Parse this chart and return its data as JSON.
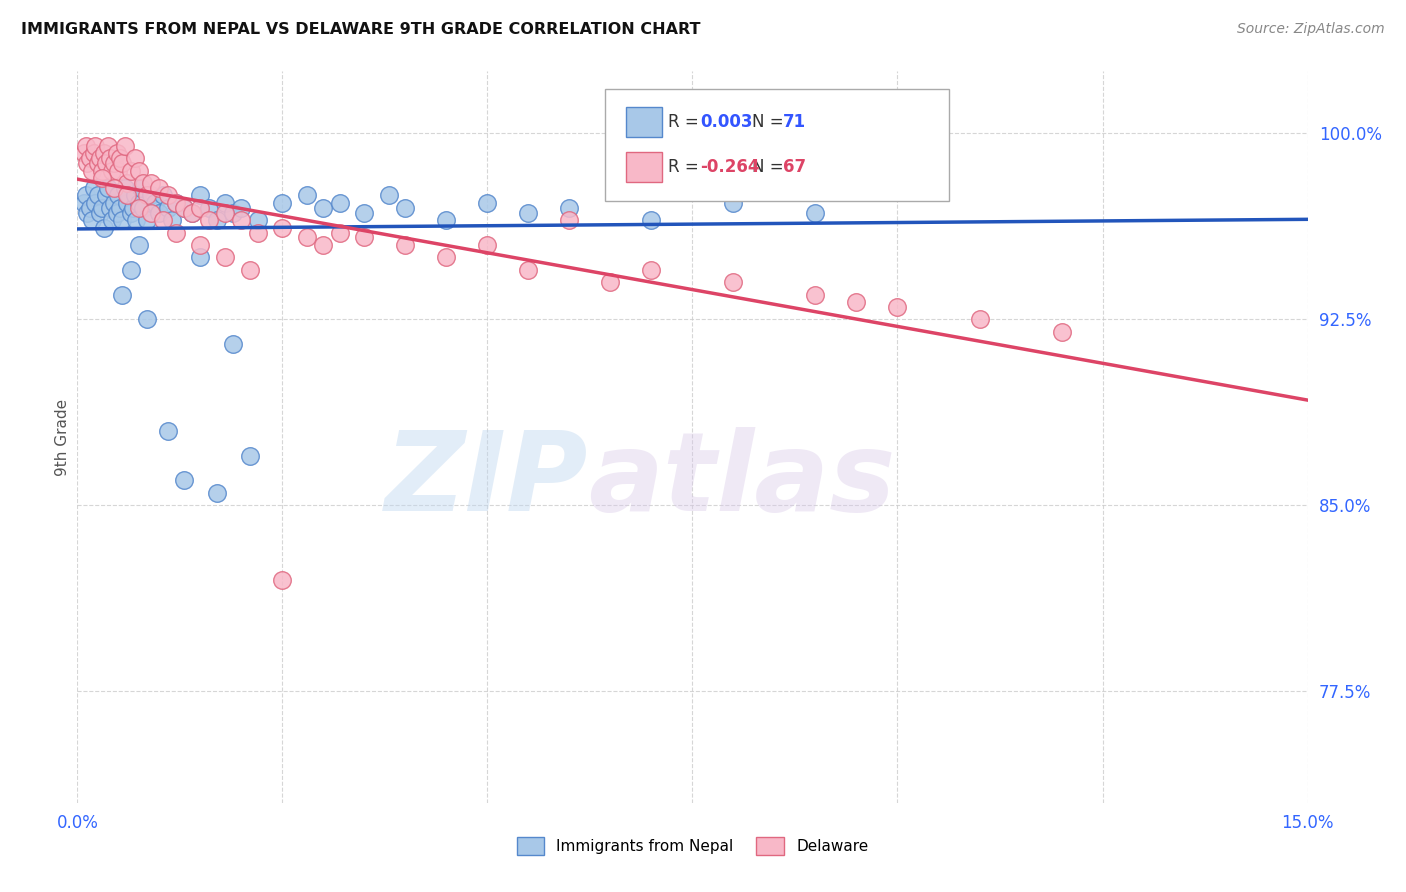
{
  "title": "IMMIGRANTS FROM NEPAL VS DELAWARE 9TH GRADE CORRELATION CHART",
  "source": "Source: ZipAtlas.com",
  "ylabel": "9th Grade",
  "xlim": [
    0.0,
    15.0
  ],
  "ylim": [
    73.0,
    102.5
  ],
  "yticks": [
    77.5,
    85.0,
    92.5,
    100.0
  ],
  "ytick_labels": [
    "77.5%",
    "85.0%",
    "92.5%",
    "100.0%"
  ],
  "xtick_vals": [
    0.0,
    2.5,
    5.0,
    7.5,
    10.0,
    12.5,
    15.0
  ],
  "xtick_labels": [
    "0.0%",
    "",
    "",
    "",
    "",
    "",
    "15.0%"
  ],
  "legend_blue_r": "0.003",
  "legend_blue_n": "71",
  "legend_pink_r": "-0.264",
  "legend_pink_n": "67",
  "blue_color": "#a8c8e8",
  "blue_edge": "#5588cc",
  "pink_color": "#f8b8c8",
  "pink_edge": "#e06880",
  "blue_line_color": "#2255bb",
  "pink_line_color": "#dd4466",
  "watermark_zip": "ZIP",
  "watermark_atlas": "atlas",
  "blue_scatter_x": [
    0.08,
    0.1,
    0.12,
    0.15,
    0.18,
    0.2,
    0.22,
    0.25,
    0.28,
    0.3,
    0.32,
    0.35,
    0.38,
    0.4,
    0.42,
    0.45,
    0.48,
    0.5,
    0.52,
    0.55,
    0.58,
    0.6,
    0.62,
    0.65,
    0.68,
    0.7,
    0.72,
    0.75,
    0.78,
    0.8,
    0.85,
    0.9,
    0.95,
    1.0,
    1.05,
    1.1,
    1.15,
    1.2,
    1.3,
    1.4,
    1.5,
    1.6,
    1.7,
    1.8,
    1.9,
    2.0,
    2.2,
    2.5,
    2.8,
    3.0,
    3.2,
    3.5,
    3.8,
    4.0,
    4.5,
    5.0,
    5.5,
    6.0,
    7.0,
    8.0,
    9.0,
    0.55,
    0.65,
    0.75,
    0.85,
    1.1,
    1.3,
    1.5,
    1.7,
    1.9,
    2.1
  ],
  "blue_scatter_y": [
    97.2,
    97.5,
    96.8,
    97.0,
    96.5,
    97.8,
    97.2,
    97.5,
    96.8,
    97.0,
    96.2,
    97.5,
    97.8,
    97.0,
    96.5,
    97.2,
    96.8,
    97.5,
    97.0,
    96.5,
    97.8,
    97.2,
    97.5,
    96.8,
    97.0,
    97.5,
    96.5,
    97.2,
    97.8,
    97.0,
    96.5,
    97.5,
    97.2,
    96.8,
    97.5,
    97.0,
    96.5,
    97.2,
    97.0,
    96.8,
    97.5,
    97.0,
    96.5,
    97.2,
    96.8,
    97.0,
    96.5,
    97.2,
    97.5,
    97.0,
    97.2,
    96.8,
    97.5,
    97.0,
    96.5,
    97.2,
    96.8,
    97.0,
    96.5,
    97.2,
    96.8,
    93.5,
    94.5,
    95.5,
    92.5,
    88.0,
    86.0,
    95.0,
    85.5,
    91.5,
    87.0
  ],
  "pink_scatter_x": [
    0.08,
    0.1,
    0.12,
    0.15,
    0.18,
    0.2,
    0.22,
    0.25,
    0.28,
    0.3,
    0.32,
    0.35,
    0.38,
    0.4,
    0.42,
    0.45,
    0.48,
    0.5,
    0.52,
    0.55,
    0.58,
    0.6,
    0.65,
    0.7,
    0.75,
    0.8,
    0.85,
    0.9,
    1.0,
    1.1,
    1.2,
    1.3,
    1.4,
    1.5,
    1.6,
    1.8,
    2.0,
    2.2,
    2.5,
    2.8,
    3.0,
    3.2,
    3.5,
    4.0,
    4.5,
    5.0,
    5.5,
    6.0,
    6.5,
    7.0,
    8.0,
    9.0,
    9.5,
    10.0,
    11.0,
    12.0,
    0.3,
    0.45,
    0.6,
    0.75,
    0.9,
    1.05,
    1.2,
    1.5,
    1.8,
    2.1,
    2.5
  ],
  "pink_scatter_y": [
    99.2,
    99.5,
    98.8,
    99.0,
    98.5,
    99.2,
    99.5,
    98.8,
    99.0,
    98.5,
    99.2,
    98.8,
    99.5,
    99.0,
    98.5,
    98.8,
    99.2,
    98.5,
    99.0,
    98.8,
    99.5,
    98.0,
    98.5,
    99.0,
    98.5,
    98.0,
    97.5,
    98.0,
    97.8,
    97.5,
    97.2,
    97.0,
    96.8,
    97.0,
    96.5,
    96.8,
    96.5,
    96.0,
    96.2,
    95.8,
    95.5,
    96.0,
    95.8,
    95.5,
    95.0,
    95.5,
    94.5,
    96.5,
    94.0,
    94.5,
    94.0,
    93.5,
    93.2,
    93.0,
    92.5,
    92.0,
    98.2,
    97.8,
    97.5,
    97.0,
    96.8,
    96.5,
    96.0,
    95.5,
    95.0,
    94.5,
    82.0
  ]
}
